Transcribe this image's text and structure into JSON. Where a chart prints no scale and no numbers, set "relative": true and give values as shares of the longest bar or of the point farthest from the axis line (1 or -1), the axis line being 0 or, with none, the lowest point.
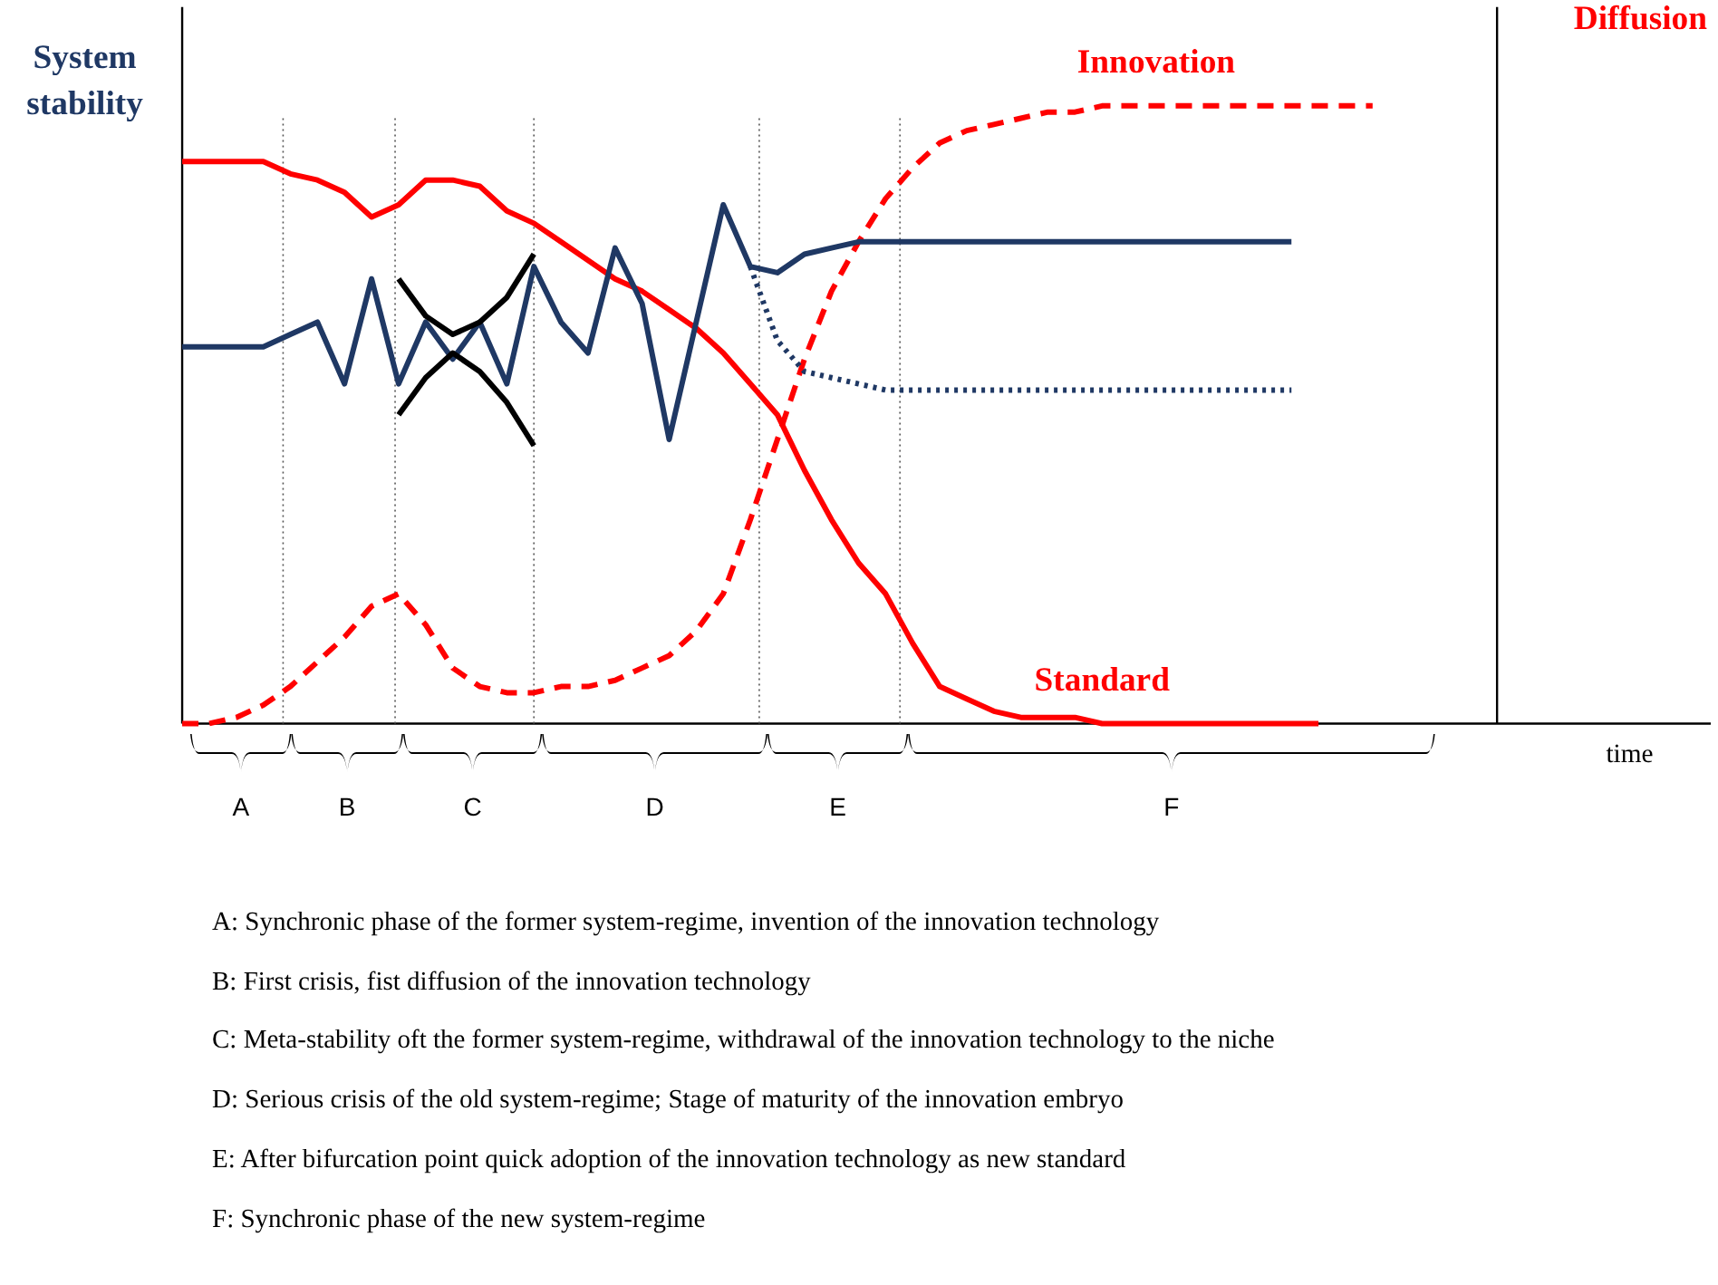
{
  "chart_data": {
    "type": "line",
    "relative": true,
    "ylabel": "System stability",
    "y2label": "Diffusion",
    "xlabel": "time",
    "grid": false,
    "categories": [
      null,
      null,
      null,
      null,
      null,
      null,
      null,
      null,
      null,
      null,
      null,
      null,
      null,
      null,
      null,
      null,
      null,
      null,
      null,
      null,
      null,
      null,
      null,
      null,
      null,
      null,
      null,
      null,
      null,
      null,
      null,
      null,
      null,
      null,
      null,
      null,
      null,
      null,
      null,
      null,
      null,
      null,
      null,
      null,
      null,
      null,
      null,
      null,
      null
    ],
    "series": [
      {
        "name": "Innovation",
        "color": "#ff0000",
        "line_style": "dashed",
        "values": [
          0,
          0,
          0.01,
          0.03,
          0.06,
          0.1,
          0.14,
          0.19,
          0.21,
          0.16,
          0.09,
          0.06,
          0.05,
          0.05,
          0.06,
          0.06,
          0.07,
          0.09,
          0.11,
          0.15,
          0.21,
          0.33,
          0.46,
          0.59,
          0.7,
          0.78,
          0.85,
          0.9,
          0.94,
          0.96,
          0.97,
          0.98,
          0.99,
          0.99,
          1,
          1,
          1,
          1,
          1,
          1,
          1,
          1,
          1,
          1,
          1,
          null,
          null,
          null,
          null
        ]
      },
      {
        "name": "Standard",
        "color": "#ff0000",
        "line_style": "solid",
        "values": [
          0.91,
          0.91,
          0.91,
          0.91,
          0.89,
          0.88,
          0.86,
          0.82,
          0.84,
          0.88,
          0.88,
          0.87,
          0.83,
          0.81,
          0.78,
          0.75,
          0.72,
          0.7,
          0.67,
          0.64,
          0.6,
          0.55,
          0.5,
          0.41,
          0.33,
          0.26,
          0.21,
          0.13,
          0.06,
          0.04,
          0.02,
          0.01,
          0.01,
          0.01,
          0,
          0,
          0,
          0,
          0,
          0,
          0,
          0,
          0,
          null,
          null,
          null,
          null,
          null,
          null
        ]
      },
      {
        "color": "#1f3864",
        "line_style": "solid",
        "values": [
          0.61,
          0.61,
          0.61,
          0.61,
          0.63,
          0.65,
          0.55,
          0.72,
          0.55,
          0.65,
          0.59,
          0.65,
          0.55,
          0.74,
          0.65,
          0.6,
          0.77,
          0.68,
          0.46,
          0.65,
          0.84,
          0.74,
          0.73,
          0.76,
          0.77,
          0.78,
          0.78,
          0.78,
          0.78,
          0.78,
          0.78,
          0.78,
          0.78,
          0.78,
          0.78,
          0.78,
          0.78,
          0.78,
          0.78,
          0.78,
          0.78,
          0.78,
          null,
          null,
          null,
          null,
          null,
          null,
          null
        ]
      },
      {
        "color": "#1f3864",
        "line_style": "dotted",
        "values": [
          null,
          null,
          null,
          null,
          null,
          null,
          null,
          null,
          null,
          null,
          null,
          null,
          null,
          null,
          null,
          null,
          null,
          null,
          null,
          null,
          null,
          0.74,
          0.62,
          0.57,
          0.56,
          0.55,
          0.54,
          0.54,
          0.54,
          0.54,
          0.54,
          0.54,
          0.54,
          0.54,
          0.54,
          0.54,
          0.54,
          0.54,
          0.54,
          0.54,
          0.54,
          0.54,
          null,
          null,
          null,
          null,
          null,
          null,
          null
        ]
      },
      {
        "color": "#000000",
        "line_style": "solid",
        "values": [
          null,
          null,
          null,
          null,
          null,
          null,
          null,
          null,
          0.72,
          0.66,
          0.63,
          0.65,
          0.69,
          0.76,
          null,
          null,
          null,
          null,
          null,
          null,
          null,
          null,
          null,
          null,
          null,
          null,
          null,
          null,
          null,
          null,
          null,
          null,
          null,
          null,
          null,
          null,
          null,
          null,
          null,
          null,
          null,
          null,
          null,
          null,
          null,
          null,
          null,
          null,
          null
        ]
      },
      {
        "color": "#000000",
        "line_style": "solid",
        "values": [
          null,
          null,
          null,
          null,
          null,
          null,
          null,
          null,
          0.5,
          0.56,
          0.6,
          0.57,
          0.52,
          0.45,
          null,
          null,
          null,
          null,
          null,
          null,
          null,
          null,
          null,
          null,
          null,
          null,
          null,
          null,
          null,
          null,
          null,
          null,
          null,
          null,
          null,
          null,
          null,
          null,
          null,
          null,
          null,
          null,
          null,
          null,
          null,
          null,
          null,
          null,
          null
        ]
      }
    ],
    "annotations": [
      "A",
      "B",
      "C",
      "D",
      "E",
      "F",
      "A: Synchronic phase of the former system-regime, invention of the innovation technology",
      "B: First crisis, fist diffusion of the innovation technology",
      "C: Meta-stability oft the former system-regime, withdrawal of the innovation technology to the niche",
      "D: Serious crisis of the old system-regime; Stage of maturity of the innovation embryo",
      "E: After bifurcation point quick adoption of the innovation technology as new standard",
      "F: Synchronic phase of the new system-regime"
    ]
  }
}
